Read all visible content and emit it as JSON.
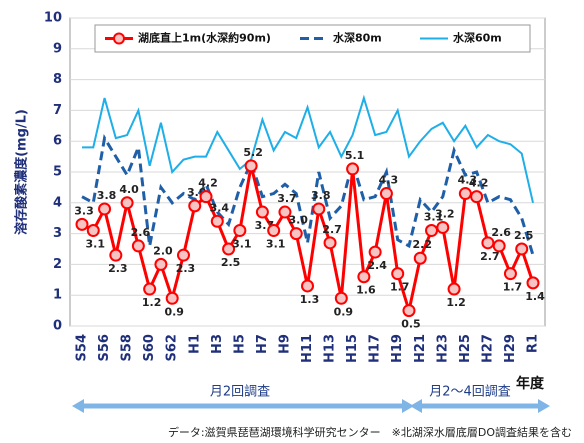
{
  "chart_data": {
    "type": "line",
    "y_label": "溶存酸素濃度(mg/L)",
    "x_label": "年度",
    "categories": [
      "S54",
      null,
      "S56",
      null,
      "S58",
      null,
      "S60",
      null,
      "S62",
      null,
      "H1",
      null,
      "H3",
      null,
      "H5",
      null,
      "H7",
      null,
      "H9",
      null,
      "H11",
      null,
      "H13",
      null,
      "H15",
      null,
      "H17",
      null,
      "H19",
      null,
      "H21",
      null,
      "H23",
      null,
      "H25",
      null,
      "H27",
      null,
      "H29",
      null,
      "R1"
    ],
    "series": [
      {
        "name": "湖底直上1m(水深約90m)",
        "color": "#ff0000",
        "style": "solid-marker",
        "values": [
          3.3,
          3.1,
          3.8,
          2.3,
          4.0,
          2.6,
          1.2,
          2.0,
          0.9,
          2.3,
          3.9,
          4.2,
          3.4,
          2.5,
          3.1,
          5.2,
          3.7,
          3.1,
          3.7,
          3.0,
          1.3,
          3.8,
          2.7,
          0.9,
          5.1,
          1.6,
          2.4,
          4.3,
          1.7,
          0.5,
          2.2,
          3.1,
          3.2,
          1.2,
          4.3,
          4.2,
          2.7,
          2.6,
          1.7,
          2.5,
          1.4
        ],
        "value_labels": [
          "3.3",
          "3.1",
          "3.8",
          "2.3",
          "4.0",
          "2.6",
          "1.2",
          "2.0",
          "0.9",
          "2.3",
          "3.9",
          "4.2",
          "3.4",
          "2.5",
          "3.1",
          "5.2",
          "3.7",
          "3.1",
          "3.7",
          "3.0",
          "1.3",
          "3.8",
          "2.7",
          "0.9",
          "5.1",
          "1.6",
          "2.4",
          "4.3",
          "1.7",
          "0.5",
          "2.2",
          "3.1",
          "3.2",
          "1.2",
          "4.3",
          "4.2",
          "2.7",
          "2.6",
          "1.7",
          "2.5",
          "1.4"
        ]
      },
      {
        "name": "水深80m",
        "color": "#1f5fa8",
        "style": "dashed",
        "values": [
          4.2,
          4.0,
          6.1,
          5.5,
          4.9,
          5.8,
          2.6,
          4.5,
          4.0,
          4.3,
          4.1,
          4.6,
          3.7,
          3.3,
          4.5,
          5.3,
          4.2,
          4.3,
          4.6,
          4.3,
          2.7,
          5.0,
          3.5,
          3.9,
          5.3,
          4.1,
          4.2,
          5.0,
          2.8,
          2.6,
          4.1,
          3.7,
          4.2,
          5.7,
          4.9,
          5.0,
          4.0,
          4.2,
          4.1,
          3.5,
          2.3
        ]
      },
      {
        "name": "水深60m",
        "color": "#1eaee8",
        "style": "solid",
        "values": [
          5.8,
          5.8,
          7.4,
          6.1,
          6.2,
          7.0,
          5.2,
          6.6,
          5.0,
          5.4,
          5.5,
          5.5,
          6.3,
          5.7,
          5.1,
          5.4,
          6.7,
          5.7,
          6.3,
          6.1,
          7.1,
          5.8,
          6.3,
          5.5,
          6.2,
          7.4,
          6.2,
          6.3,
          7.0,
          5.5,
          6.0,
          6.4,
          6.6,
          6.0,
          6.5,
          5.8,
          6.2,
          6.0,
          5.9,
          5.6,
          4.0
        ]
      }
    ],
    "ylim": [
      0,
      10
    ],
    "yticks": [
      0,
      1,
      2,
      3,
      4,
      5,
      6,
      7,
      8,
      9,
      10
    ],
    "grid": true,
    "annotations": [
      "月2回調査",
      "月2～4回調査"
    ],
    "source": "データ:滋賀県琵琶湖環境科学研究センター　※北湖深水層底層DO調査結果を含む"
  }
}
